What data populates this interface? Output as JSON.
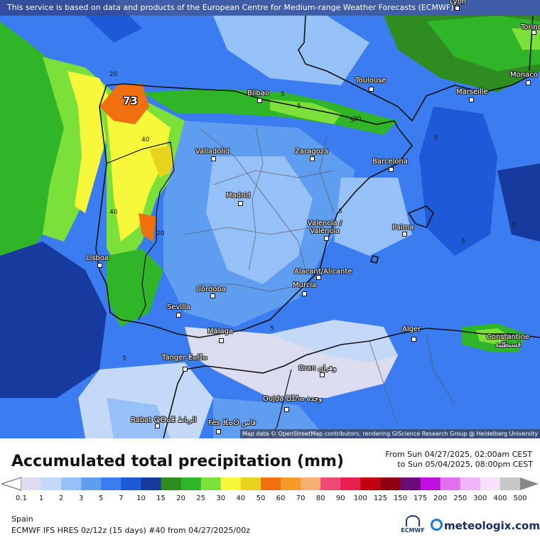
{
  "notice": "This service is based on data and products of the European Centre for Medium-range Weather Forecasts (ECMWF)",
  "attribution": "Map data © OpenStreetMap contributors, rendering GIScience Research Group @ Heidelberg University",
  "cities": [
    {
      "name": "Lyon"
    },
    {
      "name": "Torino"
    },
    {
      "name": "Monaco"
    },
    {
      "name": "Toulouse"
    },
    {
      "name": "Marseille"
    },
    {
      "name": "Bilbao"
    },
    {
      "name": "Valladolid"
    },
    {
      "name": "Zaragoza"
    },
    {
      "name": "Barcelona"
    },
    {
      "name": "Madrid"
    },
    {
      "name": "Valencia / València"
    },
    {
      "name": "Palma"
    },
    {
      "name": "Lisboa"
    },
    {
      "name": "Alacant/Alicante"
    },
    {
      "name": "Murcia"
    },
    {
      "name": "Córdoba"
    },
    {
      "name": "Sevilla"
    },
    {
      "name": "Málaga"
    },
    {
      "name": "Alger"
    },
    {
      "name": "Constantine قسنطينة"
    },
    {
      "name": "Tanger ⵟⴰⵏⵊⴰ"
    },
    {
      "name": "Oran وهران"
    },
    {
      "name": "Oujda ⵡⵊⴷⴰ وجدة"
    },
    {
      "name": "Rabat ⵕⴱⴰⵟ الرباط"
    },
    {
      "name": "Fès ⴼⴰⵙ فاس"
    }
  ],
  "contour_labels": [
    "20",
    "40",
    "40",
    "20",
    "5",
    "5",
    "5",
    "5",
    "5",
    "5",
    "5",
    "5",
    "5",
    "20"
  ],
  "max_value": "73",
  "title": "Accumulated total precipitation (mm)",
  "period": {
    "from": "From Sun 04/27/2025, 02:00am CEST",
    "to": "to Sun 05/04/2025, 08:00pm CEST"
  },
  "legend": {
    "labels": [
      "0.1",
      "1",
      "2",
      "3",
      "5",
      "7",
      "10",
      "15",
      "20",
      "25",
      "30",
      "40",
      "50",
      "60",
      "70",
      "80",
      "90",
      "100",
      "125",
      "150",
      "175",
      "200",
      "250",
      "300",
      "400",
      "500"
    ],
    "colors": [
      "#dcdcf0",
      "#c4d8f8",
      "#96c0f8",
      "#5f9df0",
      "#3b7cf0",
      "#1e5ad8",
      "#163a9e",
      "#2e8c20",
      "#30b428",
      "#7ce03a",
      "#f8f83a",
      "#e8d41e",
      "#f07010",
      "#f89a2a",
      "#f8b070",
      "#f04878",
      "#e82050",
      "#c00010",
      "#900010",
      "#6a0a78",
      "#c010e0",
      "#e070f0",
      "#f0b4f8",
      "#f8e0fa",
      "#c8c8c8"
    ]
  },
  "region": "Spain",
  "model": "ECMWF IFS HRES 0z/12z (15 days) #40 from  04/27/2025/00z",
  "logos": {
    "ecmwf": "ECMWF",
    "brand": "meteologix.com"
  }
}
